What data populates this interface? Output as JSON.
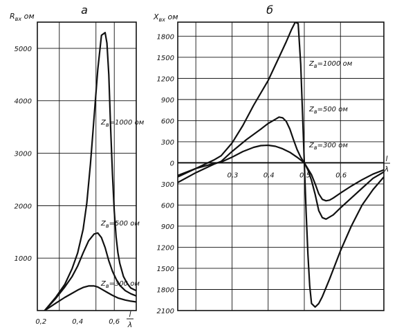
{
  "chart_data": [
    {
      "type": "line",
      "panel_label": "а",
      "ylabel": "R",
      "ylabel_sub": "вх",
      "ylabel_unit": "ом",
      "xlabel_num": "l",
      "xlabel_den": "λ",
      "xlim": [
        0.18,
        0.72
      ],
      "ylim": [
        0,
        5500
      ],
      "x_ticks": [
        0.2,
        0.4,
        0.6
      ],
      "x_tick_labels": [
        "0,2",
        "0,4",
        "0,6"
      ],
      "x_grid": [
        0.3,
        0.5,
        0.6
      ],
      "y_ticks": [
        1000,
        2000,
        3000,
        4000,
        5000
      ],
      "y_tick_labels": [
        "1000",
        "2000",
        "3000",
        "4000",
        "5000"
      ],
      "grid": true,
      "series": [
        {
          "name": "Zв=1000 ом",
          "label_main": "Z",
          "label_sub": "в",
          "label_value": "=1000 ом",
          "x": [
            0.22,
            0.28,
            0.33,
            0.37,
            0.4,
            0.43,
            0.45,
            0.47,
            0.49,
            0.51,
            0.53,
            0.55,
            0.56,
            0.57,
            0.58,
            0.59,
            0.6,
            0.61,
            0.62,
            0.63,
            0.65,
            0.67,
            0.69,
            0.72
          ],
          "y": [
            0,
            250,
            500,
            800,
            1100,
            1550,
            2050,
            2800,
            3700,
            4600,
            5250,
            5300,
            5100,
            4500,
            3500,
            2600,
            1900,
            1400,
            1100,
            900,
            650,
            520,
            430,
            380
          ]
        },
        {
          "name": "Zв=500 ом",
          "label_main": "Z",
          "label_sub": "в",
          "label_value": "=500 ом",
          "x": [
            0.22,
            0.28,
            0.33,
            0.37,
            0.4,
            0.43,
            0.46,
            0.49,
            0.51,
            0.53,
            0.55,
            0.57,
            0.59,
            0.61,
            0.63,
            0.66,
            0.69,
            0.72
          ],
          "y": [
            0,
            230,
            450,
            650,
            850,
            1100,
            1330,
            1460,
            1480,
            1390,
            1200,
            950,
            750,
            600,
            480,
            380,
            320,
            280
          ]
        },
        {
          "name": "Zв=300 ом",
          "label_main": "Z",
          "label_sub": "в",
          "label_value": "=300 ом",
          "x": [
            0.22,
            0.28,
            0.33,
            0.37,
            0.4,
            0.43,
            0.46,
            0.49,
            0.51,
            0.53,
            0.56,
            0.59,
            0.62,
            0.66,
            0.69,
            0.72
          ],
          "y": [
            0,
            140,
            250,
            330,
            390,
            440,
            470,
            470,
            450,
            410,
            350,
            290,
            240,
            200,
            180,
            165
          ]
        }
      ]
    },
    {
      "type": "line",
      "panel_label": "б",
      "ylabel": "X",
      "ylabel_sub": "вх",
      "ylabel_unit": "ом",
      "xlabel_num": "l",
      "xlabel_den": "λ",
      "xlim": [
        0.15,
        0.72
      ],
      "ylim": [
        -2100,
        2000
      ],
      "x_ticks": [
        0.3,
        0.4,
        0.5,
        0.6
      ],
      "x_tick_labels": [
        "0,3",
        "0,4",
        "0,5",
        "0,6"
      ],
      "x_grid": [
        0.2,
        0.3,
        0.4,
        0.5,
        0.6
      ],
      "y_ticks": [
        1800,
        1500,
        1200,
        900,
        600,
        300,
        0,
        -300,
        -600,
        -900,
        -1200,
        -1500,
        -1800,
        -2100
      ],
      "y_tick_labels": [
        "1800",
        "1500",
        "1200",
        "900",
        "600",
        "300",
        "0",
        "300",
        "600",
        "900",
        "1200",
        "1500",
        "1800",
        "2100"
      ],
      "grid": true,
      "series": [
        {
          "name": "Zв=1000 ом",
          "label_main": "Z",
          "label_sub": "в",
          "label_value": "=1000 ом",
          "x": [
            0.15,
            0.2,
            0.25,
            0.27,
            0.3,
            0.33,
            0.36,
            0.4,
            0.43,
            0.45,
            0.465,
            0.475,
            0.483,
            0.49,
            0.495,
            0.5,
            0.505,
            0.51,
            0.515,
            0.52,
            0.53,
            0.54,
            0.55,
            0.57,
            0.6,
            0.63,
            0.66,
            0.69,
            0.72
          ],
          "y": [
            -200,
            -80,
            40,
            100,
            280,
            530,
            820,
            1170,
            1500,
            1720,
            1900,
            2000,
            1980,
            1400,
            700,
            0,
            -700,
            -1300,
            -1750,
            -2000,
            -2050,
            -2000,
            -1900,
            -1650,
            -1250,
            -900,
            -600,
            -380,
            -200
          ]
        },
        {
          "name": "Zв=500 ом",
          "label_main": "Z",
          "label_sub": "в",
          "label_value": "=500 ом",
          "x": [
            0.15,
            0.2,
            0.25,
            0.27,
            0.3,
            0.34,
            0.38,
            0.4,
            0.42,
            0.43,
            0.44,
            0.45,
            0.46,
            0.47,
            0.48,
            0.49,
            0.5,
            0.51,
            0.52,
            0.53,
            0.54,
            0.55,
            0.56,
            0.58,
            0.6,
            0.63,
            0.66,
            0.69,
            0.72
          ],
          "y": [
            -280,
            -140,
            -20,
            20,
            160,
            330,
            480,
            560,
            620,
            650,
            640,
            590,
            480,
            330,
            190,
            80,
            0,
            -100,
            -250,
            -450,
            -680,
            -780,
            -800,
            -740,
            -640,
            -500,
            -360,
            -220,
            -130
          ]
        },
        {
          "name": "Zв=300 ом",
          "label_main": "Z",
          "label_sub": "в",
          "label_value": "=300 ом",
          "x": [
            0.15,
            0.2,
            0.25,
            0.27,
            0.3,
            0.33,
            0.36,
            0.38,
            0.4,
            0.42,
            0.44,
            0.46,
            0.48,
            0.5,
            0.52,
            0.53,
            0.54,
            0.55,
            0.56,
            0.57,
            0.58,
            0.6,
            0.63,
            0.66,
            0.69,
            0.72
          ],
          "y": [
            -180,
            -80,
            -10,
            10,
            80,
            160,
            220,
            245,
            250,
            235,
            200,
            150,
            80,
            0,
            -170,
            -300,
            -440,
            -520,
            -540,
            -530,
            -500,
            -430,
            -330,
            -240,
            -160,
            -100
          ]
        }
      ]
    }
  ]
}
